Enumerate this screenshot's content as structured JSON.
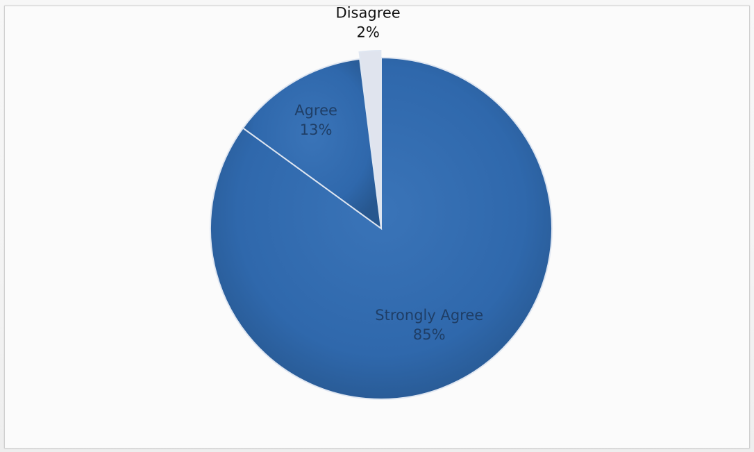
{
  "chart_data": {
    "type": "pie",
    "title": "",
    "categories": [
      "Strongly Agree",
      "Agree",
      "Disagree"
    ],
    "values": [
      85,
      13,
      2
    ],
    "labels": [
      {
        "category": "Strongly Agree",
        "percent": "85%"
      },
      {
        "category": "Agree",
        "percent": "13%"
      },
      {
        "category": "Disagree",
        "percent": "2%"
      }
    ],
    "colors": [
      "#2f68ac",
      "#2f68ac",
      "#e0e4ee"
    ],
    "label_colors": [
      "#1f3e66",
      "#1f3e66",
      "#111111"
    ],
    "legend": "none",
    "start": "12 o'clock",
    "direction": "clockwise",
    "exploded": "Disagree"
  }
}
